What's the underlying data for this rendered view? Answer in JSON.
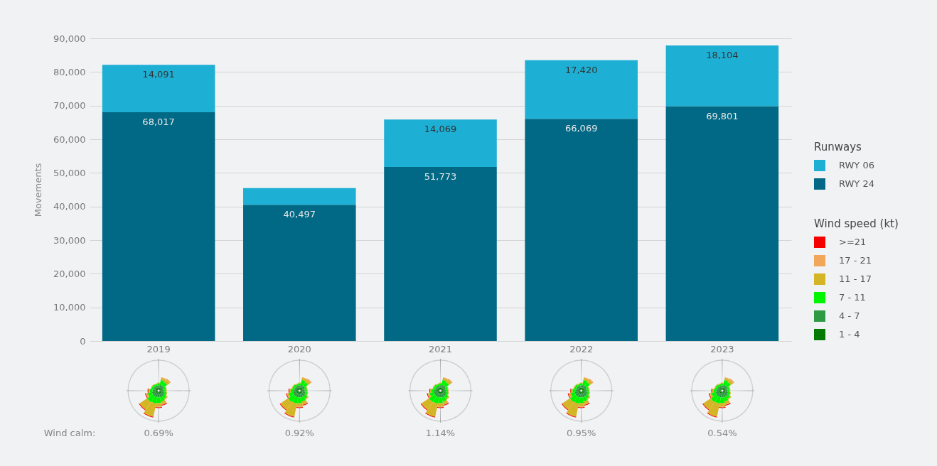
{
  "chart_data": [
    {
      "type": "bar",
      "stacked": true,
      "categories": [
        "2019",
        "2020",
        "2021",
        "2022",
        "2023"
      ],
      "series": [
        {
          "name": "RWY 24",
          "color": "#016985",
          "values": [
            68017,
            40497,
            51773,
            66069,
            69801
          ],
          "value_labels": [
            "68,017",
            "40,497",
            "51,773",
            "66,069",
            "69,801"
          ]
        },
        {
          "name": "RWY 06",
          "color": "#1eafd4",
          "values": [
            14091,
            5000,
            14069,
            17420,
            18104
          ],
          "value_labels": [
            "14,091",
            null,
            "14,069",
            "17,420",
            "18,104"
          ]
        }
      ],
      "ylabel": "Movements",
      "ylim": [
        0,
        90000
      ],
      "yticks": [
        0,
        {
          "value": 10000,
          "label": "10,000"
        },
        {
          "value": 20000,
          "label": "20,000"
        },
        {
          "value": 30000,
          "label": "30,000"
        },
        {
          "value": 40000,
          "label": "40,000"
        },
        {
          "value": 50000,
          "label": "50,000"
        },
        {
          "value": 60000,
          "label": "60,000"
        },
        {
          "value": 70000,
          "label": "70,000"
        },
        {
          "value": 80000,
          "label": "80,000"
        },
        {
          "value": 90000,
          "label": "90,000"
        }
      ],
      "grid": "y",
      "legend": "right",
      "legend_title": "Runways"
    },
    {
      "type": "other",
      "legend_title": "Wind speed (kt)",
      "categories": [
        ">=21",
        "17 - 21",
        "11 - 17",
        "7 - 11",
        "4 - 7",
        "1 - 4"
      ],
      "colors": [
        "#f50000",
        "#f2a65a",
        "#d4b526",
        "#00f500",
        "#2e9a44",
        "#007a00"
      ],
      "annotations": [
        "Wind calm:",
        "0.69%",
        "0.92%",
        "1.14%",
        "0.95%",
        "0.54%"
      ]
    }
  ]
}
